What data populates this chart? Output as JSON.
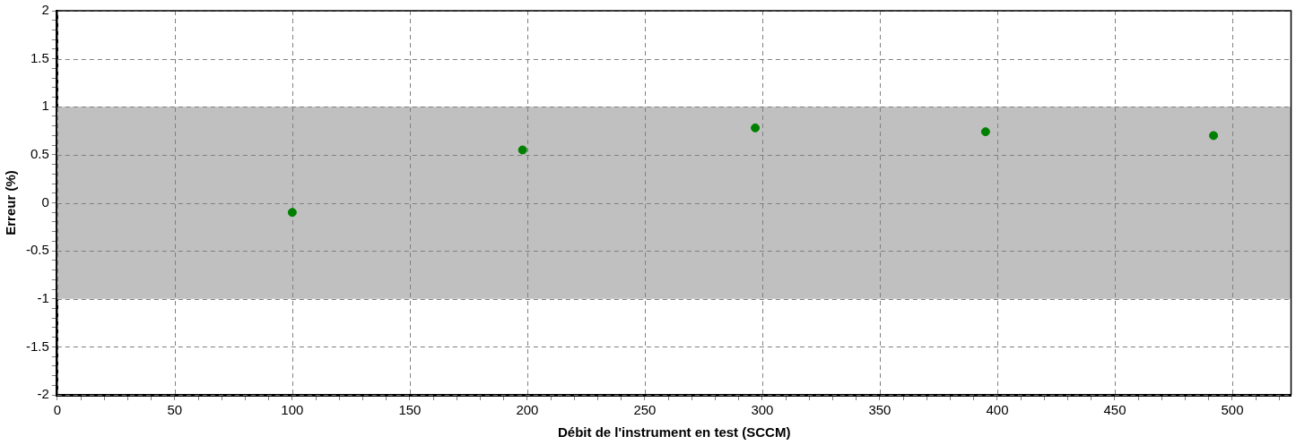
{
  "chart_data": {
    "type": "scatter",
    "xlabel": "Débit de l'instrument en test (SCCM)",
    "ylabel": "Erreur (%)",
    "x": [
      100,
      198,
      297,
      395,
      492
    ],
    "series": [
      {
        "color": "#008000",
        "values": [
          -0.1,
          0.55,
          0.78,
          0.74,
          0.7
        ]
      }
    ],
    "marker": "circle",
    "xlim": [
      0,
      525
    ],
    "ylim": [
      -2,
      2
    ],
    "xticks": [
      0,
      {
        "value": 10,
        "label": null
      },
      {
        "value": 20,
        "label": null
      },
      {
        "value": 30,
        "label": null
      },
      {
        "value": 40,
        "label": null
      },
      50,
      {
        "value": 60,
        "label": null
      },
      {
        "value": 70,
        "label": null
      },
      {
        "value": 80,
        "label": null
      },
      {
        "value": 90,
        "label": null
      },
      100,
      {
        "value": 110,
        "label": null
      },
      {
        "value": 120,
        "label": null
      },
      {
        "value": 130,
        "label": null
      },
      {
        "value": 140,
        "label": null
      },
      150,
      {
        "value": 160,
        "label": null
      },
      {
        "value": 170,
        "label": null
      },
      {
        "value": 180,
        "label": null
      },
      {
        "value": 190,
        "label": null
      },
      200,
      {
        "value": 210,
        "label": null
      },
      {
        "value": 220,
        "label": null
      },
      {
        "value": 230,
        "label": null
      },
      {
        "value": 240,
        "label": null
      },
      250,
      {
        "value": 260,
        "label": null
      },
      {
        "value": 270,
        "label": null
      },
      {
        "value": 280,
        "label": null
      },
      {
        "value": 290,
        "label": null
      },
      300,
      {
        "value": 310,
        "label": null
      },
      {
        "value": 320,
        "label": null
      },
      {
        "value": 330,
        "label": null
      },
      {
        "value": 340,
        "label": null
      },
      350,
      {
        "value": 360,
        "label": null
      },
      {
        "value": 370,
        "label": null
      },
      {
        "value": 380,
        "label": null
      },
      {
        "value": 390,
        "label": null
      },
      400,
      {
        "value": 410,
        "label": null
      },
      {
        "value": 420,
        "label": null
      },
      {
        "value": 430,
        "label": null
      },
      {
        "value": 440,
        "label": null
      },
      450,
      {
        "value": 460,
        "label": null
      },
      {
        "value": 470,
        "label": null
      },
      {
        "value": 480,
        "label": null
      },
      {
        "value": 490,
        "label": null
      },
      500,
      {
        "value": 510,
        "label": null
      },
      {
        "value": 520,
        "label": null
      }
    ],
    "yticks": [
      -2,
      {
        "value": -1.9,
        "label": null
      },
      {
        "value": -1.8,
        "label": null
      },
      {
        "value": -1.7,
        "label": null
      },
      {
        "value": -1.6,
        "label": null
      },
      -1.5,
      {
        "value": -1.4,
        "label": null
      },
      {
        "value": -1.3,
        "label": null
      },
      {
        "value": -1.2,
        "label": null
      },
      {
        "value": -1.1,
        "label": null
      },
      -1,
      {
        "value": -0.9,
        "label": null
      },
      {
        "value": -0.8,
        "label": null
      },
      {
        "value": -0.7,
        "label": null
      },
      {
        "value": -0.6,
        "label": null
      },
      -0.5,
      {
        "value": -0.4,
        "label": null
      },
      {
        "value": -0.3,
        "label": null
      },
      {
        "value": -0.2,
        "label": null
      },
      {
        "value": -0.1,
        "label": null
      },
      0,
      {
        "value": 0.1,
        "label": null
      },
      {
        "value": 0.2,
        "label": null
      },
      {
        "value": 0.3,
        "label": null
      },
      {
        "value": 0.4,
        "label": null
      },
      0.5,
      {
        "value": 0.6,
        "label": null
      },
      {
        "value": 0.7,
        "label": null
      },
      {
        "value": 0.8,
        "label": null
      },
      {
        "value": 0.9,
        "label": null
      },
      1,
      {
        "value": 1.1,
        "label": null
      },
      {
        "value": 1.2,
        "label": null
      },
      {
        "value": 1.3,
        "label": null
      },
      {
        "value": 1.4,
        "label": null
      },
      1.5,
      {
        "value": 1.6,
        "label": null
      },
      {
        "value": 1.7,
        "label": null
      },
      {
        "value": 1.8,
        "label": null
      },
      {
        "value": 1.9,
        "label": null
      },
      2
    ],
    "bands": [
      {
        "axis": "y",
        "from": -1,
        "to": 1,
        "color": "#c0c0c0"
      }
    ],
    "grid": true,
    "legend": false
  }
}
